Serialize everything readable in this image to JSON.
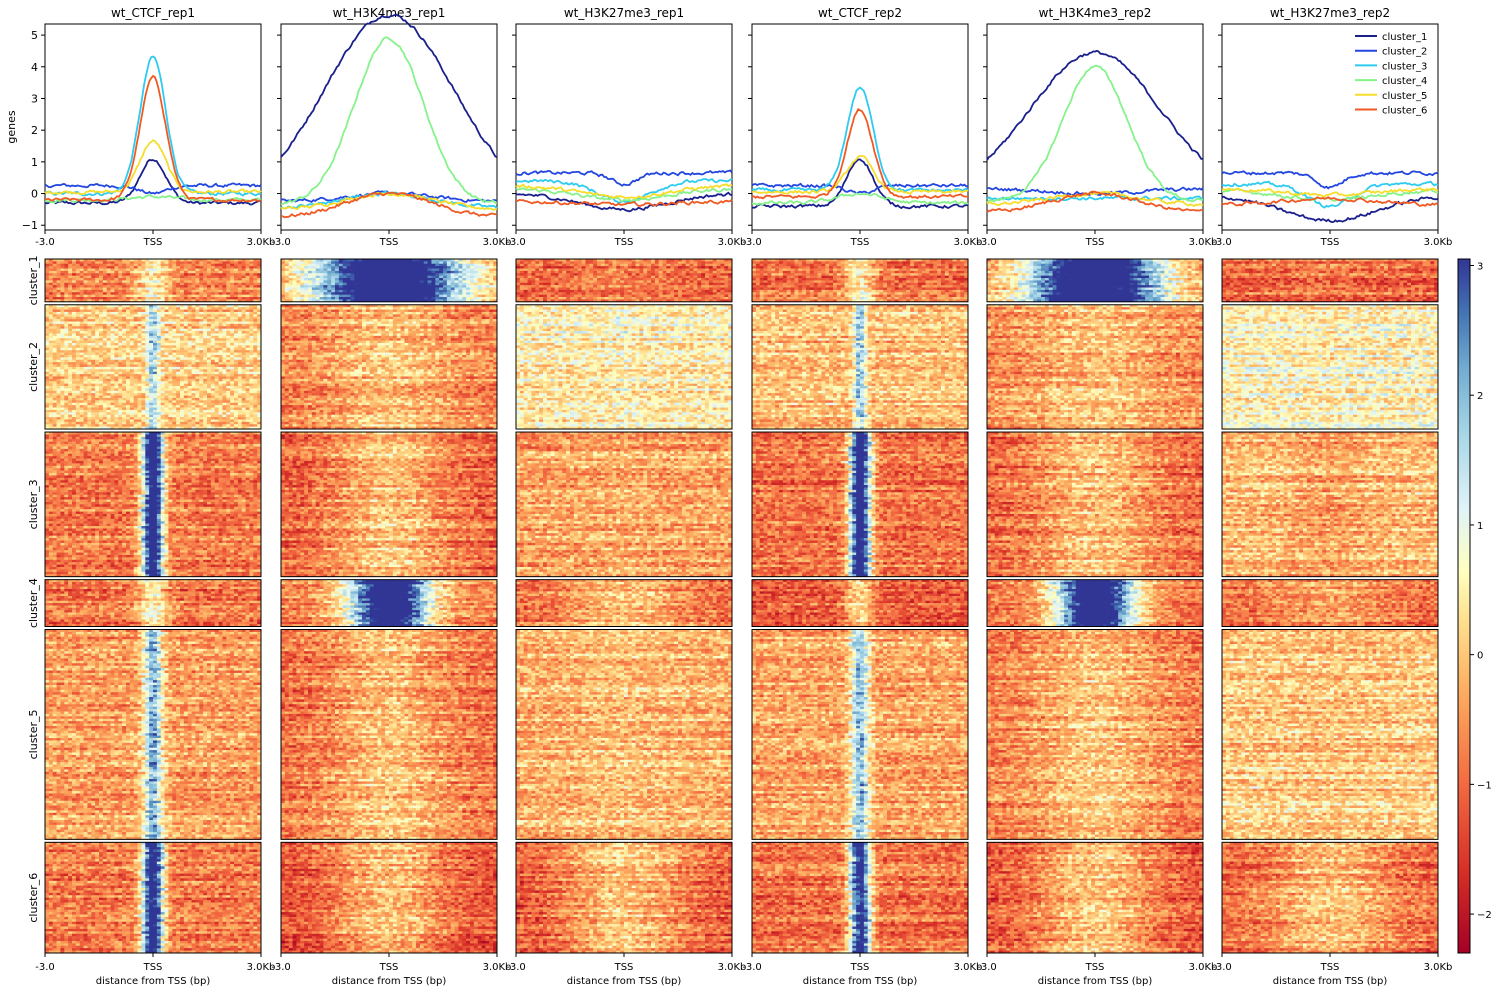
{
  "chart_data": {
    "type": "line",
    "samples": [
      "wt_CTCF_rep1",
      "wt_H3K4me3_rep1",
      "wt_H3K27me3_rep1",
      "wt_CTCF_rep2",
      "wt_H3K4me3_rep2",
      "wt_H3K27me3_rep2"
    ],
    "clusters": [
      "cluster_1",
      "cluster_2",
      "cluster_3",
      "cluster_4",
      "cluster_5",
      "cluster_6"
    ],
    "cluster_colors": [
      "#1a1f8c",
      "#2346e0",
      "#2ecbf0",
      "#86f28a",
      "#f5dd2a",
      "#ef5a24"
    ],
    "profile_ylabel": "genes",
    "profile_yticks": [
      "−1",
      "0",
      "1",
      "2",
      "3",
      "4",
      "5"
    ],
    "profile_ylim": [
      -1.15,
      5.35
    ],
    "xticks": [
      "-3.0",
      "TSS",
      "3.0Kb"
    ],
    "xlabel": "distance from TSS (bp)",
    "colorbar_ticks": [
      "−2",
      "−1",
      "0",
      "1",
      "2",
      "3"
    ],
    "colorbar_range": [
      -2.3,
      3.05
    ],
    "cluster_row_fractions": [
      0.063,
      0.183,
      0.213,
      0.069,
      0.309,
      0.163
    ],
    "profile_shapes": {
      "wt_CTCF_rep1": [
        {
          "base": -0.3,
          "peak": 1.1,
          "width": 0.06,
          "type": "sharp"
        },
        {
          "base": 0.25,
          "peak": 0.0,
          "width": 0.06,
          "type": "sharp"
        },
        {
          "base": 0.0,
          "peak": 4.3,
          "width": 0.06,
          "type": "sharp"
        },
        {
          "base": -0.2,
          "peak": -0.1,
          "width": 0.1,
          "type": "sharp"
        },
        {
          "base": 0.05,
          "peak": 1.65,
          "width": 0.06,
          "type": "sharp"
        },
        {
          "base": -0.2,
          "peak": 3.65,
          "width": 0.06,
          "type": "sharp"
        }
      ],
      "wt_H3K4me3_rep1": [
        {
          "base": -0.35,
          "peak": 5.65,
          "width": 0.3,
          "type": "broad"
        },
        {
          "base": -0.25,
          "peak": 0.0,
          "width": 0.2,
          "type": "broad"
        },
        {
          "base": -0.45,
          "peak": 0.0,
          "width": 0.2,
          "type": "broad"
        },
        {
          "base": -0.35,
          "peak": 4.9,
          "width": 0.16,
          "type": "broad"
        },
        {
          "base": -0.5,
          "peak": 0.0,
          "width": 0.2,
          "type": "broad"
        },
        {
          "base": -0.75,
          "peak": 0.0,
          "width": 0.2,
          "type": "broad"
        }
      ],
      "wt_H3K27me3_rep1": [
        {
          "base": 0.0,
          "peak": -0.5,
          "width": 0.2,
          "type": "broad"
        },
        {
          "base": 0.65,
          "peak": 0.3,
          "width": 0.06,
          "type": "sharp"
        },
        {
          "base": 0.4,
          "peak": -0.25,
          "width": 0.12,
          "type": "broad"
        },
        {
          "base": 0.15,
          "peak": -0.2,
          "width": 0.2,
          "type": "broad"
        },
        {
          "base": 0.25,
          "peak": -0.1,
          "width": 0.2,
          "type": "broad"
        },
        {
          "base": -0.25,
          "peak": -0.35,
          "width": 0.2,
          "type": "broad"
        }
      ],
      "wt_CTCF_rep2": [
        {
          "base": -0.4,
          "peak": 1.1,
          "width": 0.06,
          "type": "sharp"
        },
        {
          "base": 0.25,
          "peak": 0.0,
          "width": 0.06,
          "type": "sharp"
        },
        {
          "base": 0.1,
          "peak": 3.35,
          "width": 0.06,
          "type": "sharp"
        },
        {
          "base": -0.3,
          "peak": 0.0,
          "width": 0.1,
          "type": "sharp"
        },
        {
          "base": 0.05,
          "peak": 1.15,
          "width": 0.06,
          "type": "sharp"
        },
        {
          "base": -0.1,
          "peak": 2.65,
          "width": 0.06,
          "type": "sharp"
        }
      ],
      "wt_H3K4me3_rep2": [
        {
          "base": -0.05,
          "peak": 4.45,
          "width": 0.3,
          "type": "broad"
        },
        {
          "base": 0.15,
          "peak": 0.0,
          "width": 0.2,
          "type": "broad"
        },
        {
          "base": -0.15,
          "peak": -0.15,
          "width": 0.06,
          "type": "sharp"
        },
        {
          "base": -0.25,
          "peak": 4.0,
          "width": 0.15,
          "type": "broad"
        },
        {
          "base": -0.35,
          "peak": 0.0,
          "width": 0.2,
          "type": "broad"
        },
        {
          "base": -0.6,
          "peak": 0.0,
          "width": 0.2,
          "type": "broad"
        }
      ],
      "wt_H3K27me3_rep2": [
        {
          "base": -0.05,
          "peak": -0.85,
          "width": 0.22,
          "type": "broad"
        },
        {
          "base": 0.65,
          "peak": 0.2,
          "width": 0.06,
          "type": "sharp"
        },
        {
          "base": 0.3,
          "peak": -0.4,
          "width": 0.1,
          "type": "broad"
        },
        {
          "base": 0.1,
          "peak": -0.2,
          "width": 0.2,
          "type": "broad"
        },
        {
          "base": 0.15,
          "peak": -0.05,
          "width": 0.2,
          "type": "broad"
        },
        {
          "base": -0.35,
          "peak": -0.15,
          "width": 0.2,
          "type": "broad"
        }
      ]
    },
    "heatmap_signal": {
      "wt_CTCF_rep1": [
        {
          "bg": -0.7,
          "peak": 0.6,
          "width": 0.05
        },
        {
          "bg": 0.1,
          "peak": 1.8,
          "width": 0.02
        },
        {
          "bg": -0.8,
          "peak": 4.0,
          "width": 0.035
        },
        {
          "bg": -0.9,
          "peak": 0.6,
          "width": 0.05
        },
        {
          "bg": -0.4,
          "peak": 2.2,
          "width": 0.03
        },
        {
          "bg": -0.8,
          "peak": 3.8,
          "width": 0.035
        }
      ],
      "wt_H3K4me3_rep1": [
        {
          "bg": -0.6,
          "peak": 4.5,
          "width": 0.25
        },
        {
          "bg": -0.7,
          "peak": 0.0,
          "width": 0.2
        },
        {
          "bg": -1.1,
          "peak": 0.0,
          "width": 0.2
        },
        {
          "bg": -0.8,
          "peak": 4.2,
          "width": 0.13
        },
        {
          "bg": -0.9,
          "peak": 0.0,
          "width": 0.2
        },
        {
          "bg": -1.3,
          "peak": 0.0,
          "width": 0.2
        }
      ],
      "wt_H3K27me3_rep1": [
        {
          "bg": -1.0,
          "peak": -0.7,
          "width": 0.2
        },
        {
          "bg": 0.5,
          "peak": 0.7,
          "width": 0.03
        },
        {
          "bg": -0.4,
          "peak": -0.3,
          "width": 0.12
        },
        {
          "bg": -0.9,
          "peak": 0.0,
          "width": 0.2
        },
        {
          "bg": -0.2,
          "peak": 0.0,
          "width": 0.2
        },
        {
          "bg": -1.2,
          "peak": 0.0,
          "width": 0.2
        }
      ],
      "wt_CTCF_rep2": [
        {
          "bg": -0.9,
          "peak": 0.6,
          "width": 0.05
        },
        {
          "bg": -0.1,
          "peak": 1.8,
          "width": 0.02
        },
        {
          "bg": -0.9,
          "peak": 4.0,
          "width": 0.035
        },
        {
          "bg": -1.0,
          "peak": 0.4,
          "width": 0.05
        },
        {
          "bg": -0.3,
          "peak": 2.0,
          "width": 0.03
        },
        {
          "bg": -0.9,
          "peak": 3.5,
          "width": 0.035
        }
      ],
      "wt_H3K4me3_rep2": [
        {
          "bg": -0.6,
          "peak": 4.5,
          "width": 0.22
        },
        {
          "bg": -0.6,
          "peak": 0.0,
          "width": 0.2
        },
        {
          "bg": -1.0,
          "peak": 0.0,
          "width": 0.2
        },
        {
          "bg": -0.8,
          "peak": 4.2,
          "width": 0.13
        },
        {
          "bg": -0.8,
          "peak": 0.0,
          "width": 0.2
        },
        {
          "bg": -1.3,
          "peak": 0.0,
          "width": 0.2
        }
      ],
      "wt_H3K27me3_rep2": [
        {
          "bg": -1.0,
          "peak": -0.8,
          "width": 0.2
        },
        {
          "bg": 0.6,
          "peak": 0.5,
          "width": 0.03
        },
        {
          "bg": -0.1,
          "peak": -0.4,
          "width": 0.12
        },
        {
          "bg": -1.0,
          "peak": -0.4,
          "width": 0.2
        },
        {
          "bg": 0.1,
          "peak": 0.0,
          "width": 0.2
        },
        {
          "bg": -1.0,
          "peak": 0.0,
          "width": 0.2
        }
      ]
    }
  }
}
